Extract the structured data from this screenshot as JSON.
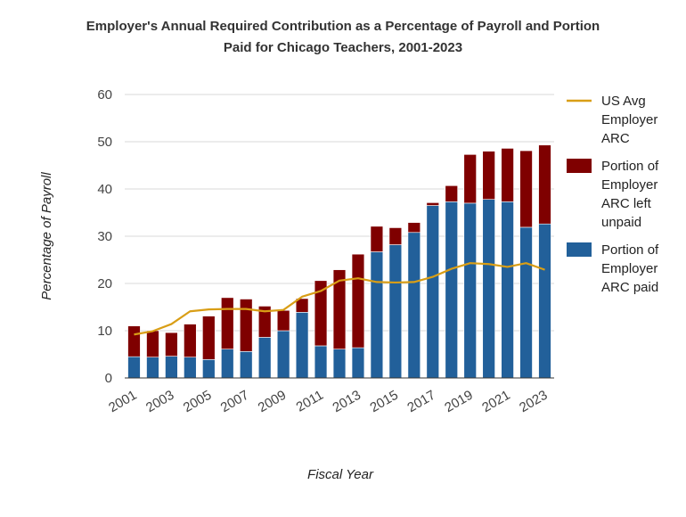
{
  "chart_data": {
    "type": "bar",
    "stacked": true,
    "title_line1": "Employer's Annual Required Contribution as a Percentage of Payroll and Portion",
    "title_line2": "Paid for Chicago Teachers, 2001-2023",
    "xlabel": "Fiscal Year",
    "ylabel": "Percentage of Payroll",
    "ylim": [
      0,
      60
    ],
    "yticks": [
      0,
      10,
      20,
      30,
      40,
      50,
      60
    ],
    "grid": true,
    "legend_position": "right",
    "categories": [
      "2001",
      "2002",
      "2003",
      "2004",
      "2005",
      "2006",
      "2007",
      "2008",
      "2009",
      "2010",
      "2011",
      "2012",
      "2013",
      "2014",
      "2015",
      "2016",
      "2017",
      "2018",
      "2019",
      "2020",
      "2021",
      "2022",
      "2023"
    ],
    "xtick_labels": [
      "2001",
      "2003",
      "2005",
      "2007",
      "2009",
      "2011",
      "2013",
      "2015",
      "2017",
      "2019",
      "2021",
      "2023"
    ],
    "series": [
      {
        "name": "Portion of Employer ARC paid",
        "name_lines": [
          "Portion of",
          "Employer",
          "ARC paid"
        ],
        "type": "bar",
        "color": "#22609a",
        "values": [
          4.5,
          4.4,
          4.6,
          4.4,
          3.9,
          6.1,
          5.6,
          8.6,
          10.0,
          13.9,
          6.8,
          6.1,
          6.4,
          26.7,
          28.2,
          30.8,
          36.5,
          37.3,
          37.0,
          37.8,
          37.3,
          31.9,
          32.6
        ]
      },
      {
        "name": "Portion of Employer ARC left unpaid",
        "name_lines": [
          "Portion of",
          "Employer",
          "ARC left",
          "unpaid"
        ],
        "type": "bar",
        "color": "#7f0000",
        "values": [
          6.5,
          5.6,
          5.0,
          7.0,
          9.2,
          10.9,
          11.1,
          6.6,
          4.3,
          2.9,
          13.8,
          16.8,
          19.8,
          5.4,
          3.6,
          2.1,
          0.6,
          3.4,
          10.3,
          10.2,
          11.3,
          16.2,
          16.7
        ]
      },
      {
        "name": "US Avg Employer ARC",
        "name_lines": [
          "US Avg",
          "Employer",
          "ARC"
        ],
        "type": "line",
        "color": "#d99e16",
        "values": [
          9.2,
          9.9,
          11.4,
          14.1,
          14.5,
          14.6,
          14.6,
          14.1,
          14.4,
          17.2,
          18.4,
          20.6,
          21.1,
          20.3,
          20.2,
          20.3,
          21.4,
          23.1,
          24.3,
          24.1,
          23.5,
          24.3,
          22.9
        ]
      }
    ]
  }
}
